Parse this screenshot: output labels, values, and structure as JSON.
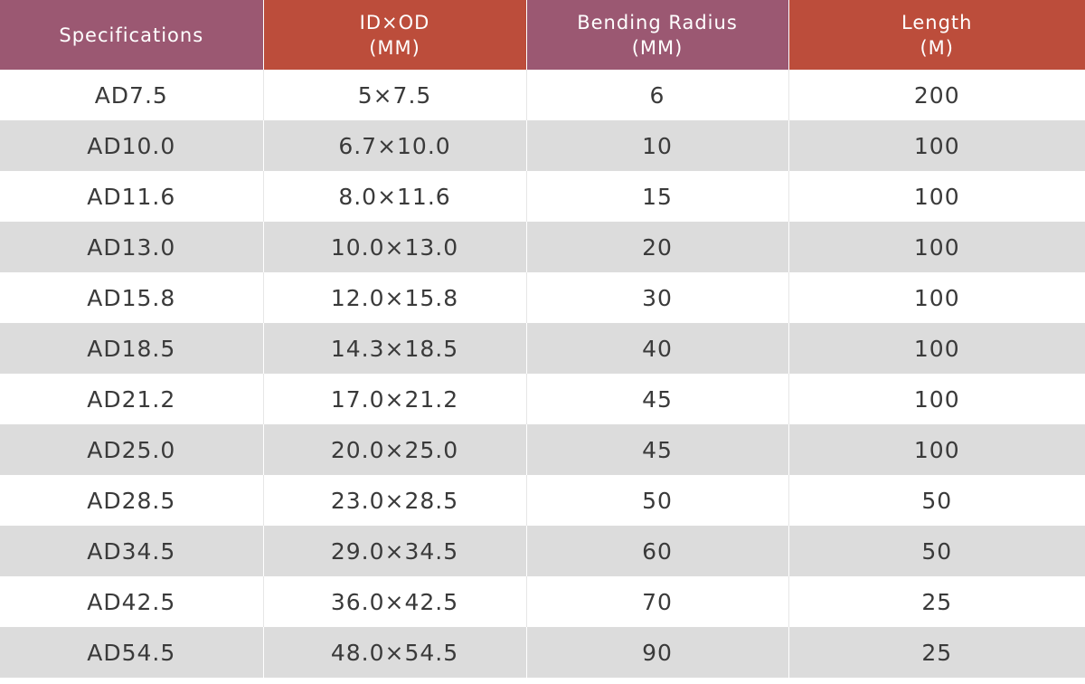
{
  "table": {
    "headers": [
      {
        "lines": [
          "Specifications"
        ],
        "color": "#9b5872"
      },
      {
        "lines": [
          "ID×OD",
          "(MM)"
        ],
        "color": "#bc4d3b"
      },
      {
        "lines": [
          "Bending Radius",
          "(MM)"
        ],
        "color": "#9b5872"
      },
      {
        "lines": [
          "Length",
          "(M)"
        ],
        "color": "#bc4d3b"
      }
    ],
    "rows": [
      [
        "AD7.5",
        "5×7.5",
        "6",
        "200"
      ],
      [
        "AD10.0",
        "6.7×10.0",
        "10",
        "100"
      ],
      [
        "AD11.6",
        "8.0×11.6",
        "15",
        "100"
      ],
      [
        "AD13.0",
        "10.0×13.0",
        "20",
        "100"
      ],
      [
        "AD15.8",
        "12.0×15.8",
        "30",
        "100"
      ],
      [
        "AD18.5",
        "14.3×18.5",
        "40",
        "100"
      ],
      [
        "AD21.2",
        "17.0×21.2",
        "45",
        "100"
      ],
      [
        "AD25.0",
        "20.0×25.0",
        "45",
        "100"
      ],
      [
        "AD28.5",
        "23.0×28.5",
        "50",
        "50"
      ],
      [
        "AD34.5",
        "29.0×34.5",
        "60",
        "50"
      ],
      [
        "AD42.5",
        "36.0×42.5",
        "70",
        "25"
      ],
      [
        "AD54.5",
        "48.0×54.5",
        "90",
        "25"
      ]
    ]
  }
}
